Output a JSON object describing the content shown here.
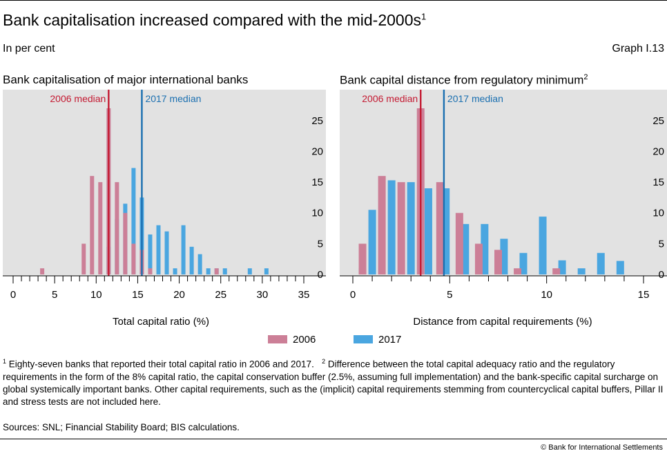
{
  "header": {
    "title": "Bank capitalisation increased compared with the mid-2000s",
    "title_note": "1",
    "subtitle": "In per cent",
    "graph_number": "Graph I.13"
  },
  "colors": {
    "series_2006": "#cc7f97",
    "series_2017": "#4aa6e0",
    "median_2006": "#c41a32",
    "median_2017": "#1a6fb0",
    "panel_bg": "#e2e2e2"
  },
  "legend": {
    "item_2006": "2006",
    "item_2017": "2017"
  },
  "footnotes": {
    "note1_marker": "1",
    "note1": "Eighty-seven banks that reported their total capital ratio in 2006 and 2017.",
    "note2_marker": "2",
    "note2": "Difference between the total capital adequacy ratio and the regulatory requirements in the form of the 8% capital ratio, the capital conservation buffer (2.5%, assuming full implementation) and the bank-specific capital surcharge on global systemically important banks. Other capital requirements, such as the (implicit) capital requirements stemming from countercyclical capital buffers, Pillar II and stress tests are not included here."
  },
  "sources": "Sources: SNL; Financial Stability Board; BIS calculations.",
  "copyright": "© Bank for International Settlements",
  "chart_data": [
    {
      "type": "bar",
      "title": "Bank capitalisation of major international banks",
      "xlabel": "Total capital ratio (%)",
      "xlim": [
        0,
        35
      ],
      "ylim": [
        0,
        28
      ],
      "x_ticks": [
        0,
        5,
        10,
        15,
        20,
        25,
        30,
        35
      ],
      "y_ticks": [
        0,
        5,
        10,
        15,
        20,
        25
      ],
      "medians": [
        {
          "label": "2006 median",
          "value": 11.5
        },
        {
          "label": "2017 median",
          "value": 15.5
        }
      ],
      "series": [
        {
          "name": "2006",
          "x": [
            3.5,
            8.5,
            9.5,
            10.5,
            11.5,
            12.5,
            13.5,
            14.5,
            15.5,
            16.5,
            24.5
          ],
          "values": [
            1,
            5,
            16,
            15,
            27,
            15,
            10,
            5,
            4,
            1,
            1
          ]
        },
        {
          "name": "2017",
          "x": [
            11.5,
            12.5,
            13.5,
            14.5,
            15.5,
            16.5,
            17.5,
            18.5,
            19.5,
            20.5,
            21.5,
            22.5,
            23.5,
            24.5,
            25.5,
            28.5,
            30.5
          ],
          "values": [
            4.5,
            9,
            11.5,
            17.3,
            12.5,
            6.5,
            8,
            7,
            1,
            8,
            4.5,
            3.3,
            1,
            1,
            1,
            1,
            1
          ]
        }
      ]
    },
    {
      "type": "bar",
      "title": "Bank capital distance from regulatory minimum",
      "title_note": "2",
      "xlabel": "Distance from capital requirements (%)",
      "xlim": [
        0,
        15
      ],
      "ylim": [
        0,
        28
      ],
      "x_ticks": [
        0,
        5,
        10,
        15
      ],
      "y_ticks": [
        0,
        5,
        10,
        15,
        20,
        25
      ],
      "medians": [
        {
          "label": "2006 median",
          "value": 3.5
        },
        {
          "label": "2017 median",
          "value": 4.7
        }
      ],
      "series": [
        {
          "name": "2006",
          "x": [
            0.5,
            1.5,
            2.5,
            3.5,
            4.5,
            5.5,
            6.5,
            7.5,
            8.5,
            10.5
          ],
          "values": [
            5,
            16,
            15,
            27,
            15,
            10,
            5,
            4,
            1,
            1
          ]
        },
        {
          "name": "2017",
          "x": [
            0.5,
            1.0,
            2.0,
            3.0,
            3.9,
            4.8,
            5.8,
            6.8,
            7.8,
            8.8,
            9.8,
            10.8,
            11.8,
            12.8,
            13.8
          ],
          "values": [
            1,
            10.5,
            15.3,
            15,
            14,
            14,
            8.2,
            8.2,
            5.8,
            3.5,
            9.4,
            2.3,
            1,
            3.5,
            2.2
          ]
        }
      ]
    }
  ]
}
